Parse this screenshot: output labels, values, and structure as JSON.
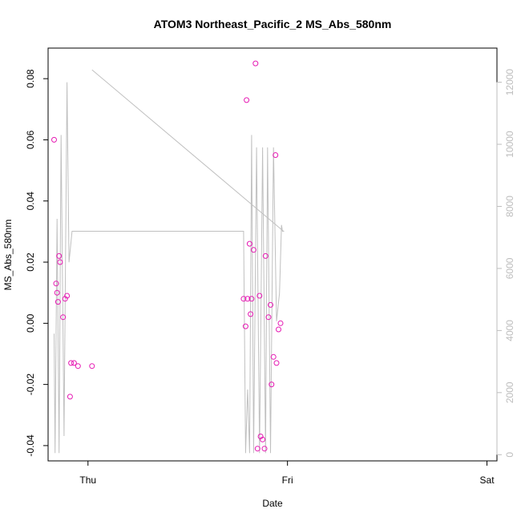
{
  "chart_data": {
    "type": "scatter",
    "title": "ATOM3 Northeast_Pacific_2 MS_Abs_580nm",
    "xlabel": "Date",
    "ylabel": "MS_Abs_580nm",
    "x_ticks": [
      "Thu",
      "Fri",
      "Sat"
    ],
    "x_tick_days": [
      0,
      1,
      2
    ],
    "xlim": [
      -0.2,
      2.05
    ],
    "y_ticks": [
      -0.04,
      -0.02,
      0.0,
      0.02,
      0.04,
      0.06,
      0.08
    ],
    "y_tick_labels": [
      "-0.04",
      "-0.02",
      "0.00",
      "0.02",
      "0.04",
      "0.06",
      "0.08"
    ],
    "ylim": [
      -0.045,
      0.09
    ],
    "y2_ticks": [
      0,
      2000,
      4000,
      6000,
      8000,
      10000,
      12000
    ],
    "y2_tick_labels": [
      "0",
      "2000",
      "4000",
      "6000",
      "8000",
      "10000",
      "12000"
    ],
    "y2lim": [
      -200,
      13100
    ],
    "grid": false,
    "colors": {
      "points": "#e619b3",
      "line": "#c0c0c0",
      "axis": "#000000",
      "right_axis": "#bdbdbd"
    },
    "series": [
      {
        "kind": "points",
        "axis": "left",
        "x": [
          -0.17,
          -0.16,
          -0.155,
          -0.15,
          -0.145,
          -0.14,
          -0.125,
          -0.115,
          -0.105,
          -0.09,
          -0.085,
          -0.07,
          -0.05,
          0.02,
          0.78,
          0.79,
          0.795,
          0.8,
          0.81,
          0.815,
          0.82,
          0.83,
          0.84,
          0.85,
          0.86,
          0.865,
          0.875,
          0.885,
          0.89,
          0.905,
          0.915,
          0.92,
          0.93,
          0.94,
          0.945,
          0.955,
          0.965
        ],
        "y": [
          0.06,
          0.013,
          0.01,
          0.007,
          0.022,
          0.02,
          0.002,
          0.008,
          0.009,
          -0.024,
          -0.013,
          -0.013,
          -0.014,
          -0.014,
          0.008,
          -0.001,
          0.073,
          0.008,
          0.026,
          0.003,
          0.008,
          0.024,
          0.085,
          -0.041,
          0.009,
          -0.037,
          -0.038,
          -0.041,
          0.022,
          0.002,
          0.006,
          -0.02,
          -0.011,
          0.055,
          -0.013,
          -0.002,
          0.0
        ]
      },
      {
        "kind": "line",
        "axis": "right",
        "x": [
          -0.17,
          -0.165,
          -0.155,
          -0.145,
          -0.135,
          -0.12,
          -0.105,
          -0.095,
          -0.08,
          0.02,
          0.78,
          0.79,
          0.8,
          0.81,
          0.82,
          0.83,
          0.845,
          0.86,
          0.875,
          0.89,
          0.9,
          0.915,
          0.93,
          0.945,
          0.96,
          0.97,
          0.975,
          0.98,
          0.02
        ],
        "y": [
          3900,
          50,
          7600,
          50,
          10300,
          600,
          12000,
          6200,
          7200,
          7200,
          7200,
          50,
          2100,
          50,
          10300,
          50,
          9900,
          50,
          9900,
          50,
          9900,
          50,
          9900,
          4300,
          5200,
          7400,
          7200,
          7200,
          12400
        ]
      }
    ]
  }
}
